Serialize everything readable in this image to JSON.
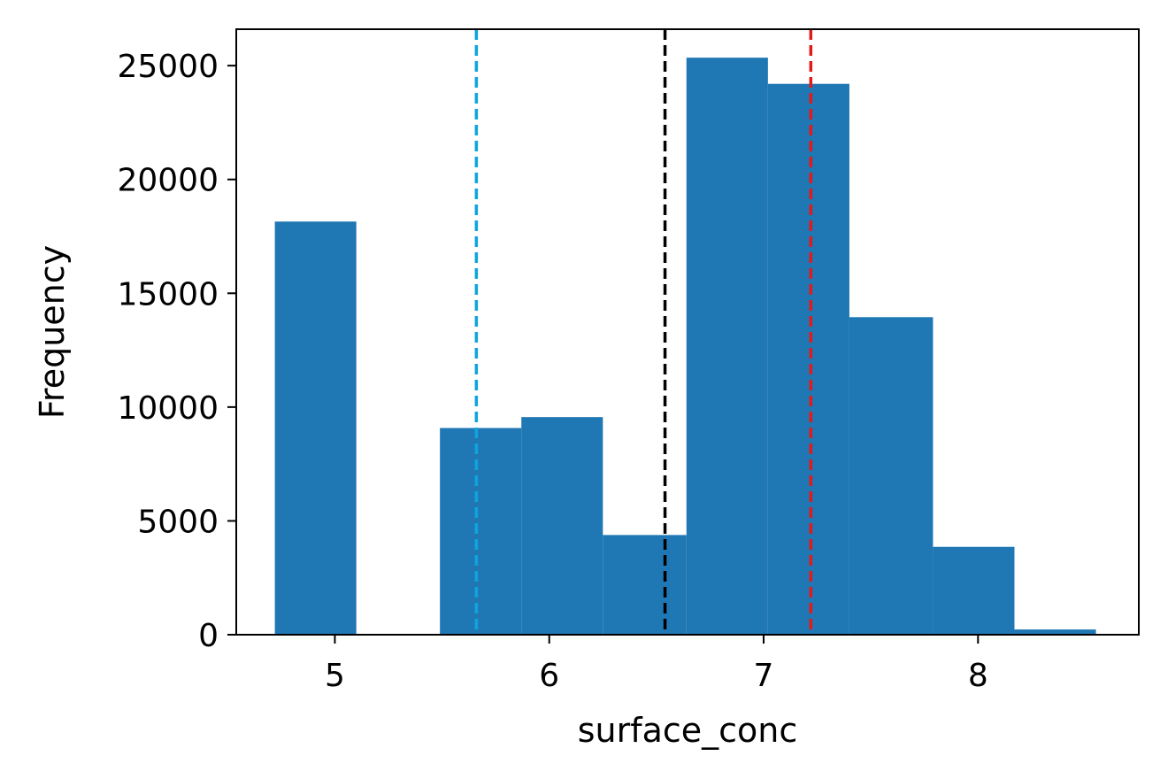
{
  "chart_data": {
    "type": "bar",
    "subtype": "histogram",
    "title": "",
    "xlabel": "surface_conc",
    "ylabel": "Frequency",
    "xlim": [
      4.54,
      8.75
    ],
    "ylim": [
      0,
      26600
    ],
    "x_ticks": [
      5,
      6,
      7,
      8
    ],
    "y_ticks": [
      0,
      5000,
      10000,
      15000,
      20000,
      25000
    ],
    "bins": [
      {
        "start": 4.72,
        "end": 5.1,
        "count": 18150
      },
      {
        "start": 5.1,
        "end": 5.49,
        "count": 0
      },
      {
        "start": 5.49,
        "end": 5.87,
        "count": 9080
      },
      {
        "start": 5.87,
        "end": 6.25,
        "count": 9560
      },
      {
        "start": 6.25,
        "end": 6.64,
        "count": 4380
      },
      {
        "start": 6.64,
        "end": 7.02,
        "count": 25350
      },
      {
        "start": 7.02,
        "end": 7.4,
        "count": 24200
      },
      {
        "start": 7.4,
        "end": 7.79,
        "count": 13950
      },
      {
        "start": 7.79,
        "end": 8.17,
        "count": 3860
      },
      {
        "start": 8.17,
        "end": 8.55,
        "count": 230
      }
    ],
    "bar_color": "#1f77b4",
    "reference_lines": [
      {
        "x": 5.66,
        "color": "#0ea5dd",
        "style": "dashed"
      },
      {
        "x": 6.54,
        "color": "#000000",
        "style": "dashed"
      },
      {
        "x": 7.22,
        "color": "#e31a1c",
        "style": "dashed"
      }
    ],
    "grid": false,
    "legend": "none"
  }
}
